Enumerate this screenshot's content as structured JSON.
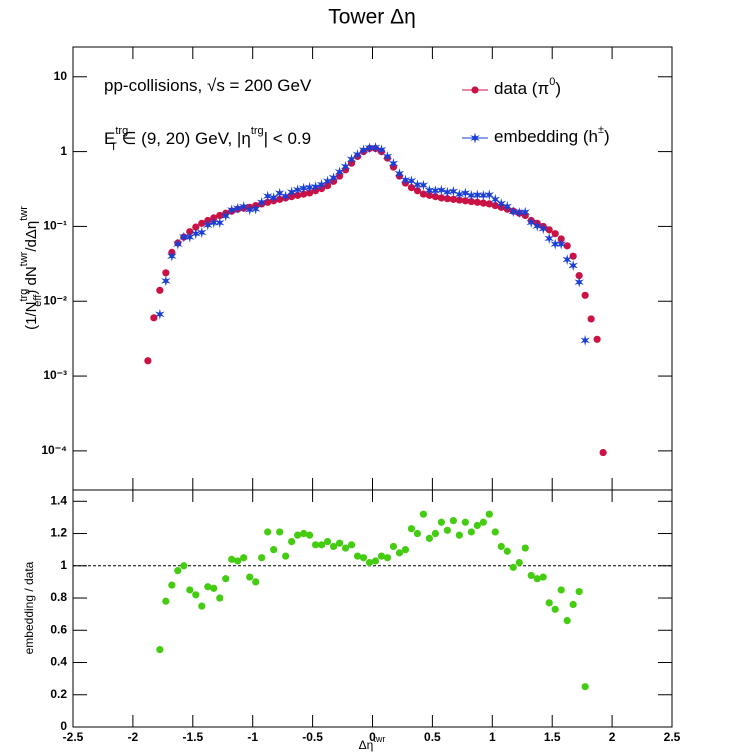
{
  "chart_data": [
    {
      "type": "scatter",
      "title": "Tower Δη",
      "y_label": [
        "(1/N",
        "trg",
        "eff",
        ") dN",
        "twr",
        "/dΔη",
        "twr"
      ],
      "annotations": [
        [
          "pp-collisions, √s = 200 GeV"
        ],
        [
          "E",
          "trg",
          "T",
          " ∈ (9, 20) GeV, |η",
          "trg",
          "| < 0.9"
        ]
      ],
      "log_y": true,
      "legend": "upper right",
      "xlim": [
        -2.5,
        2.5
      ],
      "xticks": [
        -2.5,
        -2,
        -1.5,
        -1,
        -0.5,
        0,
        0.5,
        1,
        1.5,
        2,
        2.5
      ],
      "ylim": [
        3e-05,
        25
      ],
      "yticks": [
        {
          "value": 0.0001,
          "label": "10⁻⁴"
        },
        {
          "value": 0.001,
          "label": "10⁻³"
        },
        {
          "value": 0.01,
          "label": "10⁻²"
        },
        {
          "value": 0.1,
          "label": "10⁻¹"
        },
        1,
        10
      ],
      "x": [
        -1.875,
        -1.825,
        -1.775,
        -1.725,
        -1.675,
        -1.625,
        -1.575,
        -1.525,
        -1.475,
        -1.425,
        -1.375,
        -1.325,
        -1.275,
        -1.225,
        -1.175,
        -1.125,
        -1.075,
        -1.025,
        -0.975,
        -0.925,
        -0.875,
        -0.825,
        -0.775,
        -0.725,
        -0.675,
        -0.625,
        -0.575,
        -0.525,
        -0.475,
        -0.425,
        -0.375,
        -0.325,
        -0.275,
        -0.225,
        -0.175,
        -0.125,
        -0.075,
        -0.025,
        0.025,
        0.075,
        0.125,
        0.175,
        0.225,
        0.275,
        0.325,
        0.375,
        0.425,
        0.475,
        0.525,
        0.575,
        0.625,
        0.675,
        0.725,
        0.775,
        0.825,
        0.875,
        0.925,
        0.975,
        1.025,
        1.075,
        1.125,
        1.175,
        1.225,
        1.275,
        1.325,
        1.375,
        1.425,
        1.475,
        1.525,
        1.575,
        1.625,
        1.675,
        1.725,
        1.775,
        1.825,
        1.875,
        1.925
      ],
      "series": [
        {
          "name": [
            "data (π",
            "0",
            ")"
          ],
          "color": "#cc1144",
          "marker": "circle",
          "values": [
            0.0016,
            0.006,
            0.014,
            0.024,
            0.045,
            0.06,
            0.072,
            0.085,
            0.098,
            0.11,
            0.12,
            0.13,
            0.14,
            0.15,
            0.16,
            0.17,
            0.175,
            0.18,
            0.19,
            0.2,
            0.21,
            0.22,
            0.23,
            0.24,
            0.25,
            0.26,
            0.27,
            0.28,
            0.3,
            0.32,
            0.35,
            0.4,
            0.47,
            0.57,
            0.7,
            0.86,
            1.0,
            1.1,
            1.1,
            1.0,
            0.82,
            0.62,
            0.47,
            0.38,
            0.33,
            0.3,
            0.27,
            0.26,
            0.25,
            0.24,
            0.235,
            0.23,
            0.225,
            0.22,
            0.215,
            0.21,
            0.205,
            0.2,
            0.19,
            0.18,
            0.17,
            0.16,
            0.15,
            0.14,
            0.12,
            0.11,
            0.1,
            0.09,
            0.08,
            0.068,
            0.055,
            0.04,
            0.022,
            0.012,
            0.0058,
            0.0031,
            9.5e-05
          ]
        },
        {
          "name": [
            "embedding (h",
            "±",
            ")"
          ],
          "color": "#1a3fd6",
          "marker": "star",
          "values": [
            null,
            null,
            0.0067,
            0.0187,
            0.04,
            0.058,
            0.072,
            0.072,
            0.08,
            0.083,
            0.104,
            0.112,
            0.112,
            0.138,
            0.166,
            0.175,
            0.184,
            0.167,
            0.171,
            0.21,
            0.254,
            0.242,
            0.278,
            0.254,
            0.288,
            0.309,
            0.324,
            0.333,
            0.339,
            0.362,
            0.403,
            0.448,
            0.536,
            0.633,
            0.791,
            0.912,
            1.05,
            1.122,
            1.133,
            1.06,
            0.861,
            0.694,
            0.508,
            0.418,
            0.406,
            0.36,
            0.356,
            0.304,
            0.3,
            0.305,
            0.287,
            0.294,
            0.268,
            0.279,
            0.26,
            0.263,
            0.26,
            0.264,
            0.23,
            0.202,
            0.185,
            0.158,
            0.153,
            0.155,
            0.113,
            0.101,
            0.093,
            0.069,
            0.058,
            0.058,
            0.036,
            0.03,
            0.018,
            0.003,
            null,
            null,
            null
          ]
        }
      ]
    },
    {
      "type": "scatter",
      "x_label": [
        "Δη",
        "twr"
      ],
      "y_label": [
        "embedding / data"
      ],
      "xlim": [
        -2.5,
        2.5
      ],
      "xticks": [
        -2.5,
        -2,
        -1.5,
        -1,
        -0.5,
        0,
        0.5,
        1,
        1.5,
        2,
        2.5
      ],
      "ylim": [
        0,
        1.47
      ],
      "yticks": [
        0,
        0.2,
        0.4,
        0.6,
        0.8,
        1,
        1.2,
        1.4
      ],
      "reference_line": 1,
      "x": [
        -1.875,
        -1.825,
        -1.775,
        -1.725,
        -1.675,
        -1.625,
        -1.575,
        -1.525,
        -1.475,
        -1.425,
        -1.375,
        -1.325,
        -1.275,
        -1.225,
        -1.175,
        -1.125,
        -1.075,
        -1.025,
        -0.975,
        -0.925,
        -0.875,
        -0.825,
        -0.775,
        -0.725,
        -0.675,
        -0.625,
        -0.575,
        -0.525,
        -0.475,
        -0.425,
        -0.375,
        -0.325,
        -0.275,
        -0.225,
        -0.175,
        -0.125,
        -0.075,
        -0.025,
        0.025,
        0.075,
        0.125,
        0.175,
        0.225,
        0.275,
        0.325,
        0.375,
        0.425,
        0.475,
        0.525,
        0.575,
        0.625,
        0.675,
        0.725,
        0.775,
        0.825,
        0.875,
        0.925,
        0.975,
        1.025,
        1.075,
        1.125,
        1.175,
        1.225,
        1.275,
        1.325,
        1.375,
        1.425,
        1.475,
        1.525,
        1.575,
        1.625,
        1.675,
        1.725,
        1.775,
        1.825,
        1.875,
        1.925
      ],
      "series": [
        {
          "color": "#44cc11",
          "marker": "circle",
          "values": [
            null,
            null,
            0.48,
            0.78,
            0.88,
            0.97,
            1.0,
            0.85,
            0.82,
            0.75,
            0.87,
            0.86,
            0.8,
            0.92,
            1.04,
            1.03,
            1.05,
            0.93,
            0.9,
            1.05,
            1.21,
            1.1,
            1.21,
            1.06,
            1.15,
            1.19,
            1.2,
            1.19,
            1.13,
            1.13,
            1.15,
            1.12,
            1.14,
            1.11,
            1.13,
            1.06,
            1.05,
            1.02,
            1.03,
            1.06,
            1.05,
            1.12,
            1.08,
            1.1,
            1.23,
            1.2,
            1.32,
            1.17,
            1.2,
            1.27,
            1.22,
            1.28,
            1.19,
            1.27,
            1.21,
            1.25,
            1.27,
            1.32,
            1.21,
            1.12,
            1.09,
            0.99,
            1.02,
            1.11,
            0.94,
            0.92,
            0.93,
            0.77,
            0.73,
            0.85,
            0.66,
            0.76,
            0.84,
            0.25,
            null,
            null,
            null
          ]
        }
      ]
    }
  ]
}
